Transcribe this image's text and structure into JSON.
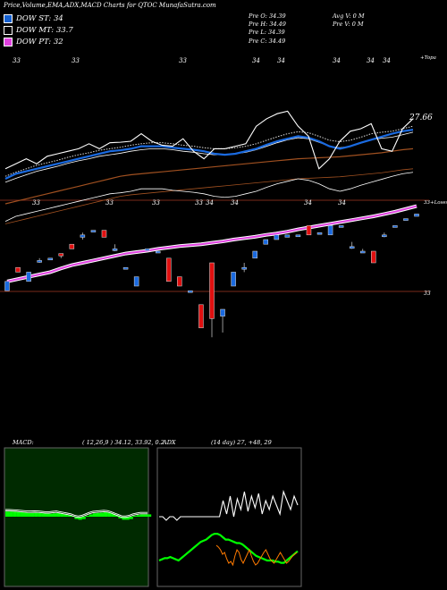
{
  "header": {
    "title": "Price,Volume,EMA,ADX,MACD Charts for QTOC MunafaSutra.com"
  },
  "legend": {
    "st": "DOW ST: 34",
    "mt": "DOW MT: 33.7",
    "pt": "DOW PT: 32"
  },
  "prices": {
    "open": "Pre  O: 34.39",
    "high": "Pre  H: 34.49",
    "low": "Pre  L: 34.39",
    "close": "Pre  C: 34.49"
  },
  "volume": {
    "avg": "Avg V: 0  M",
    "pre": "Pre  V: 0  M"
  },
  "top_labels": [
    "33",
    "33",
    "33",
    "34",
    "34",
    "34",
    "34",
    "34"
  ],
  "mid_labels": [
    "33",
    "33",
    "33",
    "33",
    "34",
    "34",
    "34",
    "34"
  ],
  "right_labels": {
    "topa": "+Topa",
    "last": "27.66",
    "mid": "33+Loses",
    "low": "33"
  },
  "macd": {
    "label": "MACD:",
    "params": "( 12,26,9 ) 34.12,  33.92,  0.2"
  },
  "adx": {
    "label": "ADX",
    "params": "(14  day) 27,  +48,  29"
  },
  "colors": {
    "ema_blue": "#1a6ae0",
    "ema_pink": "#e040e0",
    "ema_brown": "#a05020",
    "up_candle": "#1a6ae0",
    "down_candle": "#e01010",
    "macd_green": "#00ff00",
    "adx_orange": "#ff7a00"
  },
  "chart_data": {
    "type": "line",
    "title": "Price,Volume,EMA,ADX,MACD Charts for QTOC MunafaSutra.com",
    "candles": [
      {
        "o": 32.9,
        "c": 33.1,
        "h": 33.1,
        "l": 32.9
      },
      {
        "o": 33.4,
        "c": 33.3,
        "h": 33.4,
        "l": 33.3
      },
      {
        "o": 33.1,
        "c": 33.3,
        "h": 33.3,
        "l": 33.1
      },
      {
        "o": 33.55,
        "c": 33.55,
        "h": 33.6,
        "l": 33.5
      },
      {
        "o": 33.6,
        "c": 33.6,
        "h": 33.6,
        "l": 33.6
      },
      {
        "o": 33.7,
        "c": 33.65,
        "h": 33.7,
        "l": 33.6
      },
      {
        "o": 33.9,
        "c": 33.8,
        "h": 33.9,
        "l": 33.8
      },
      {
        "o": 34.05,
        "c": 34.1,
        "h": 34.15,
        "l": 34.0
      },
      {
        "o": 34.2,
        "c": 34.2,
        "h": 34.2,
        "l": 34.2
      },
      {
        "o": 34.2,
        "c": 34.05,
        "h": 34.2,
        "l": 34.05
      },
      {
        "o": 33.8,
        "c": 33.8,
        "h": 33.9,
        "l": 33.75
      },
      {
        "o": 33.4,
        "c": 33.4,
        "h": 33.4,
        "l": 33.4
      },
      {
        "o": 33.0,
        "c": 33.2,
        "h": 33.2,
        "l": 33.0
      },
      {
        "o": 33.8,
        "c": 33.8,
        "h": 33.8,
        "l": 33.8
      },
      {
        "o": 33.75,
        "c": 33.75,
        "h": 33.75,
        "l": 33.75
      },
      {
        "o": 33.6,
        "c": 33.1,
        "h": 33.6,
        "l": 33.1
      },
      {
        "o": 33.2,
        "c": 33.0,
        "h": 33.2,
        "l": 33.0
      },
      {
        "o": 32.9,
        "c": 32.9,
        "h": 32.9,
        "l": 32.9
      },
      {
        "o": 32.6,
        "c": 32.1,
        "h": 32.6,
        "l": 32.1
      },
      {
        "o": 33.5,
        "c": 32.3,
        "h": 33.5,
        "l": 31.9
      },
      {
        "o": 32.35,
        "c": 32.5,
        "h": 32.5,
        "l": 32.0
      },
      {
        "o": 33.0,
        "c": 33.3,
        "h": 33.3,
        "l": 33.0
      },
      {
        "o": 33.4,
        "c": 33.4,
        "h": 33.5,
        "l": 33.3
      },
      {
        "o": 33.6,
        "c": 33.75,
        "h": 33.75,
        "l": 33.6
      },
      {
        "o": 33.9,
        "c": 34.0,
        "h": 34.0,
        "l": 33.9
      },
      {
        "o": 34.0,
        "c": 34.1,
        "h": 34.1,
        "l": 34.0
      },
      {
        "o": 34.05,
        "c": 34.1,
        "h": 34.1,
        "l": 34.05
      },
      {
        "o": 34.1,
        "c": 34.1,
        "h": 34.1,
        "l": 34.1
      },
      {
        "o": 34.3,
        "c": 34.1,
        "h": 34.3,
        "l": 34.1
      },
      {
        "o": 34.15,
        "c": 34.15,
        "h": 34.15,
        "l": 34.15
      },
      {
        "o": 34.1,
        "c": 34.3,
        "h": 34.3,
        "l": 34.1
      },
      {
        "o": 34.3,
        "c": 34.3,
        "h": 34.3,
        "l": 34.3
      },
      {
        "o": 33.85,
        "c": 33.85,
        "h": 33.95,
        "l": 33.8
      },
      {
        "o": 33.75,
        "c": 33.75,
        "h": 33.8,
        "l": 33.75
      },
      {
        "o": 33.75,
        "c": 33.5,
        "h": 33.75,
        "l": 33.5
      },
      {
        "o": 34.1,
        "c": 34.1,
        "h": 34.15,
        "l": 34.05
      },
      {
        "o": 34.3,
        "c": 34.3,
        "h": 34.3,
        "l": 34.3
      },
      {
        "o": 34.45,
        "c": 34.45,
        "h": 34.45,
        "l": 34.45
      },
      {
        "o": 34.5,
        "c": 34.55,
        "h": 34.55,
        "l": 34.5
      }
    ],
    "ema_pink": [
      33.1,
      33.15,
      33.2,
      33.25,
      33.3,
      33.38,
      33.45,
      33.5,
      33.55,
      33.6,
      33.65,
      33.7,
      33.73,
      33.76,
      33.8,
      33.83,
      33.86,
      33.88,
      33.9,
      33.93,
      33.96,
      34.0,
      34.03,
      34.06,
      34.1,
      34.13,
      34.17,
      34.22,
      34.26,
      34.3,
      34.34,
      34.38,
      34.42,
      34.46,
      34.5,
      34.55,
      34.6,
      34.66,
      34.72
    ],
    "upper_white": [
      27.62,
      27.63,
      27.64,
      27.63,
      27.645,
      27.65,
      27.655,
      27.66,
      27.67,
      27.66,
      27.672,
      27.673,
      27.675,
      27.69,
      27.675,
      27.667,
      27.665,
      27.68,
      27.655,
      27.64,
      27.66,
      27.66,
      27.665,
      27.67,
      27.705,
      27.72,
      27.73,
      27.735,
      27.705,
      27.685,
      27.62,
      27.64,
      27.675,
      27.695,
      27.7,
      27.71,
      27.66,
      27.655,
      27.7,
      27.72
    ],
    "upper_blue": [
      27.6,
      27.61,
      27.615,
      27.62,
      27.625,
      27.63,
      27.635,
      27.64,
      27.645,
      27.65,
      27.655,
      27.657,
      27.66,
      27.665,
      27.665,
      27.665,
      27.662,
      27.66,
      27.658,
      27.655,
      27.65,
      27.648,
      27.65,
      27.655,
      27.66,
      27.668,
      27.675,
      27.68,
      27.685,
      27.682,
      27.675,
      27.665,
      27.66,
      27.665,
      27.672,
      27.678,
      27.684,
      27.69,
      27.695,
      27.698
    ],
    "upper_dotted": [
      27.605,
      27.613,
      27.62,
      27.627,
      27.632,
      27.637,
      27.643,
      27.648,
      27.652,
      27.657,
      27.66,
      27.663,
      27.667,
      27.67,
      27.672,
      27.672,
      27.67,
      27.667,
      27.665,
      27.662,
      27.66,
      27.66,
      27.662,
      27.665,
      27.67,
      27.677,
      27.684,
      27.69,
      27.694,
      27.692,
      27.685,
      27.677,
      27.674,
      27.677,
      27.683,
      27.69,
      27.693,
      27.695,
      27.7,
      27.705
    ],
    "upper_brown": [
      27.55,
      27.555,
      27.56,
      27.565,
      27.57,
      27.575,
      27.58,
      27.585,
      27.59,
      27.595,
      27.6,
      27.605,
      27.608,
      27.61,
      27.612,
      27.614,
      27.616,
      27.618,
      27.62,
      27.622,
      27.624,
      27.626,
      27.628,
      27.63,
      27.632,
      27.634,
      27.636,
      27.638,
      27.64,
      27.641,
      27.642,
      27.643,
      27.644,
      27.646,
      27.648,
      27.65,
      27.652,
      27.655,
      27.658,
      27.66
    ],
    "macd_hist": [
      0.6,
      0.6,
      0.58,
      0.55,
      0.5,
      0.45,
      0.4,
      0.4,
      0.42,
      0.4,
      0.35,
      0.3,
      0.3,
      0.35,
      0.4,
      0.3,
      0.2,
      0.1,
      0.0,
      -0.2,
      -0.3,
      -0.2,
      0.0,
      0.2,
      0.35,
      0.4,
      0.45,
      0.5,
      0.45,
      0.3,
      0.1,
      -0.1,
      -0.3,
      -0.3,
      -0.2,
      0.0,
      0.1,
      0.2,
      0.2,
      0.2
    ],
    "adx_white": [
      10,
      10,
      3,
      10,
      10,
      3,
      10,
      10,
      10,
      10,
      10,
      10,
      10,
      10,
      10,
      10,
      10,
      10,
      6,
      10,
      10,
      10,
      10,
      10,
      10,
      10,
      10,
      10,
      10,
      10,
      10,
      10,
      10,
      10,
      10,
      10,
      10,
      10,
      10,
      10,
      10,
      10,
      10,
      10,
      10,
      10,
      10,
      10,
      10,
      10,
      10,
      10,
      10,
      10,
      10,
      10,
      10,
      10,
      10,
      10,
      10,
      10,
      10,
      10,
      10,
      10,
      10,
      10,
      10,
      10,
      10,
      10,
      10,
      10,
      10,
      10,
      10,
      10,
      10,
      10,
      10,
      10,
      10,
      10,
      10,
      10,
      10,
      10,
      10,
      10,
      10,
      10,
      10,
      10,
      10,
      10,
      10,
      10,
      10,
      10,
      10,
      10,
      10,
      10,
      10,
      10,
      10,
      10,
      10,
      10,
      10,
      10,
      10,
      10,
      10,
      10,
      10,
      10,
      10,
      10,
      10,
      10,
      10,
      10,
      10,
      10,
      10,
      10,
      10,
      10,
      10,
      10,
      10,
      10,
      10,
      10,
      10,
      10,
      10,
      10,
      10,
      10,
      10,
      10,
      10,
      10,
      10,
      10,
      10,
      10,
      10,
      10,
      10,
      10
    ],
    "adx_green": [
      10,
      11,
      12,
      12,
      13,
      12,
      11,
      10,
      12,
      14,
      16,
      18,
      20,
      22,
      24,
      26,
      27,
      28,
      30,
      32,
      33,
      33,
      32,
      30,
      28,
      28,
      27,
      26,
      25,
      25,
      24,
      22,
      20,
      18,
      16,
      14,
      13,
      12,
      11,
      10,
      10,
      10,
      9,
      9,
      8,
      8,
      10,
      12,
      14,
      16,
      18
    ],
    "adx_orange": [
      10,
      10,
      10,
      10,
      10,
      10,
      10,
      10,
      10,
      10,
      10,
      10,
      10,
      10,
      10,
      10,
      10,
      10,
      10,
      10,
      10,
      10,
      10,
      10,
      10,
      10,
      18,
      20,
      15,
      10,
      8,
      6,
      5,
      4,
      3,
      5,
      8,
      6,
      3,
      2
    ]
  }
}
